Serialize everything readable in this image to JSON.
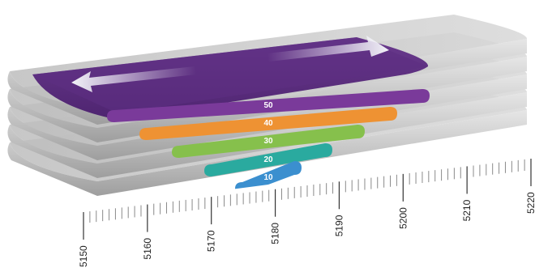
{
  "bands": [
    {
      "label": "10",
      "color": "#3b8fcf"
    },
    {
      "label": "20",
      "color": "#2aaa9f"
    },
    {
      "label": "30",
      "color": "#86c04c"
    },
    {
      "label": "40",
      "color": "#ee9233"
    },
    {
      "label": "50",
      "color": "#7a3a9a"
    }
  ],
  "axis": {
    "ticks": [
      "5150",
      "5160",
      "5170",
      "5180",
      "5190",
      "5200",
      "5210",
      "5220"
    ]
  },
  "colors": {
    "tray": "#c8c8c8",
    "tray_dark": "#a8a8a8",
    "top_plate": "#5b2d7d",
    "arrow": "#e8e8f0"
  },
  "icons": {
    "arrows": "double-headed-arrow-icon"
  }
}
